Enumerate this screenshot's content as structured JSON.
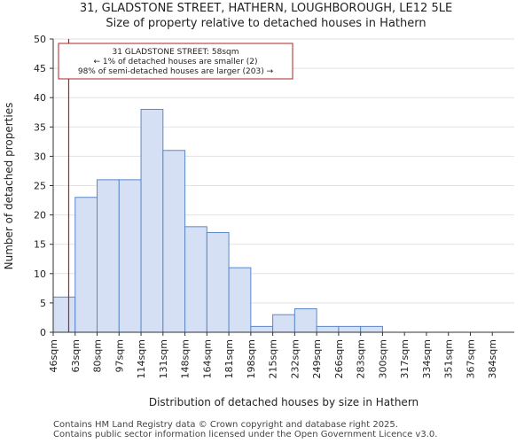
{
  "chart_data": {
    "type": "bar",
    "title_line1": "31, GLADSTONE STREET, HATHERN, LOUGHBOROUGH, LE12 5LE",
    "title_line2": "Size of property relative to detached houses in Hathern",
    "xlabel": "Distribution of detached houses by size in Hathern",
    "ylabel": "Number of detached properties",
    "categories": [
      "46sqm",
      "63sqm",
      "80sqm",
      "97sqm",
      "114sqm",
      "131sqm",
      "148sqm",
      "164sqm",
      "181sqm",
      "198sqm",
      "215sqm",
      "232sqm",
      "249sqm",
      "266sqm",
      "283sqm",
      "300sqm",
      "317sqm",
      "334sqm",
      "351sqm",
      "367sqm",
      "384sqm"
    ],
    "values": [
      6,
      23,
      26,
      26,
      38,
      31,
      18,
      17,
      11,
      1,
      3,
      4,
      1,
      1,
      1,
      0,
      0,
      0,
      0,
      0,
      0
    ],
    "ylim": [
      0,
      50
    ],
    "yticks": [
      0,
      5,
      10,
      15,
      20,
      25,
      30,
      35,
      40,
      45,
      50
    ],
    "bar_fill": "#d6e0f5",
    "bar_edge": "#5b87c8",
    "grid": true,
    "marker": {
      "value_sqm": 58,
      "color": "#b22222",
      "annotation": [
        "31 GLADSTONE STREET: 58sqm",
        "← 1% of detached houses are smaller (2)",
        "98% of semi-detached houses are larger (203) →"
      ]
    }
  },
  "footer": {
    "line1": "Contains HM Land Registry data © Crown copyright and database right 2025.",
    "line2": "Contains public sector information licensed under the Open Government Licence v3.0."
  }
}
